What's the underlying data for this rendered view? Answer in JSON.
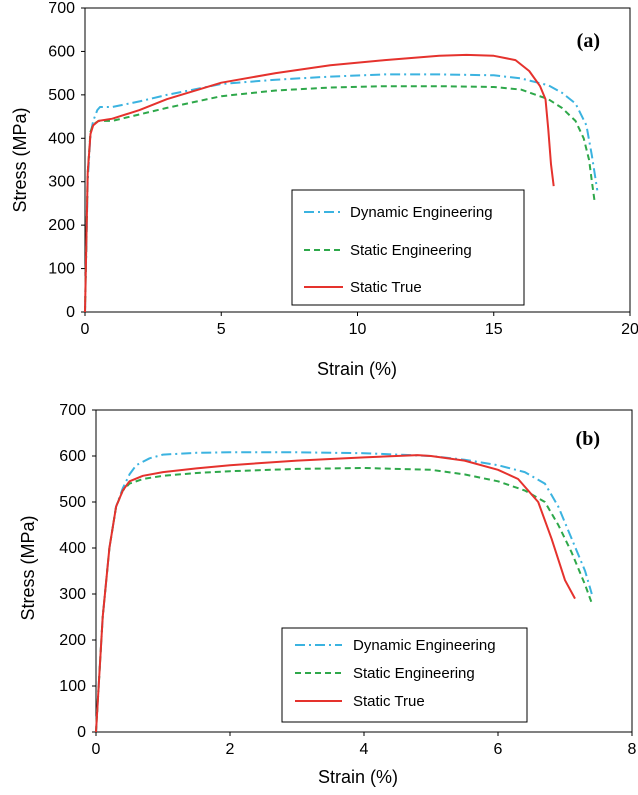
{
  "colors": {
    "dynamic_engineering": "#3bb3e0",
    "static_engineering": "#2ea84a",
    "static_true": "#e5322d",
    "axis": "#000000"
  },
  "chart_data": [
    {
      "type": "line",
      "panel_label": "(a)",
      "xlabel": "Strain (%)",
      "ylabel": "Stress (MPa)",
      "xlim": [
        0,
        20
      ],
      "ylim": [
        0,
        700
      ],
      "xticks": [
        "0",
        "5",
        "10",
        "15",
        "20"
      ],
      "yticks": [
        "0",
        "100",
        "200",
        "300",
        "400",
        "500",
        "600",
        "700"
      ],
      "grid": false,
      "legend_position": "lower-right",
      "series": [
        {
          "name": "Dynamic Engineering",
          "style": "dash-dot",
          "x": [
            0,
            0.1,
            0.2,
            0.3,
            0.45,
            0.55,
            1,
            2,
            3,
            5,
            7,
            9,
            11,
            13,
            15,
            16,
            17,
            17.5,
            18,
            18.4,
            18.6,
            18.8
          ],
          "y": [
            0,
            300,
            410,
            440,
            465,
            472,
            472,
            485,
            500,
            525,
            535,
            542,
            547,
            547,
            545,
            538,
            522,
            505,
            480,
            430,
            360,
            280
          ]
        },
        {
          "name": "Static Engineering",
          "style": "dashed",
          "x": [
            0,
            0.1,
            0.2,
            0.3,
            0.5,
            1,
            2,
            3,
            5,
            7,
            9,
            11,
            13,
            15,
            16,
            17,
            17.5,
            18,
            18.3,
            18.5,
            18.6,
            18.7
          ],
          "y": [
            0,
            320,
            415,
            432,
            440,
            440,
            455,
            470,
            497,
            510,
            517,
            520,
            520,
            518,
            512,
            490,
            470,
            440,
            400,
            350,
            300,
            255
          ]
        },
        {
          "name": "Static True",
          "style": "solid",
          "x": [
            0,
            0.1,
            0.2,
            0.3,
            0.5,
            1,
            2,
            3,
            5,
            7,
            9,
            11,
            13,
            14,
            15,
            15.8,
            16.3,
            16.7,
            16.9,
            17.0,
            17.1,
            17.2
          ],
          "y": [
            0,
            320,
            410,
            430,
            440,
            445,
            465,
            490,
            528,
            550,
            568,
            580,
            590,
            592,
            590,
            580,
            555,
            520,
            490,
            420,
            340,
            290
          ]
        }
      ]
    },
    {
      "type": "line",
      "panel_label": "(b)",
      "xlabel": "Strain (%)",
      "ylabel": "Stress (MPa)",
      "xlim": [
        0,
        8
      ],
      "ylim": [
        0,
        700
      ],
      "xticks": [
        "0",
        "2",
        "4",
        "6",
        "8"
      ],
      "yticks": [
        "0",
        "100",
        "200",
        "300",
        "400",
        "500",
        "600",
        "700"
      ],
      "grid": false,
      "legend_position": "lower-right",
      "series": [
        {
          "name": "Dynamic Engineering",
          "style": "dash-dot",
          "x": [
            0,
            0.1,
            0.2,
            0.3,
            0.4,
            0.5,
            0.6,
            0.8,
            1,
            1.5,
            2,
            3,
            4,
            5,
            5.5,
            6,
            6.4,
            6.7,
            6.9,
            7.1,
            7.3,
            7.4
          ],
          "y": [
            0,
            250,
            400,
            490,
            530,
            560,
            580,
            595,
            603,
            607,
            608,
            608,
            606,
            600,
            592,
            580,
            565,
            540,
            490,
            420,
            350,
            300
          ]
        },
        {
          "name": "Static Engineering",
          "style": "dashed",
          "x": [
            0,
            0.1,
            0.2,
            0.3,
            0.4,
            0.5,
            0.7,
            1,
            1.5,
            2,
            3,
            4,
            5,
            5.5,
            6,
            6.4,
            6.7,
            6.9,
            7.1,
            7.3,
            7.4
          ],
          "y": [
            0,
            250,
            400,
            490,
            525,
            540,
            550,
            557,
            563,
            567,
            572,
            574,
            570,
            560,
            545,
            525,
            500,
            450,
            390,
            320,
            280
          ]
        },
        {
          "name": "Static True",
          "style": "solid",
          "x": [
            0,
            0.1,
            0.2,
            0.3,
            0.4,
            0.5,
            0.7,
            1,
            1.5,
            2,
            3,
            4,
            4.8,
            5,
            5.5,
            6,
            6.3,
            6.6,
            6.8,
            7.0,
            7.15
          ],
          "y": [
            0,
            250,
            400,
            490,
            525,
            545,
            557,
            565,
            573,
            580,
            590,
            597,
            602,
            600,
            590,
            570,
            550,
            500,
            420,
            330,
            290
          ]
        }
      ]
    }
  ]
}
